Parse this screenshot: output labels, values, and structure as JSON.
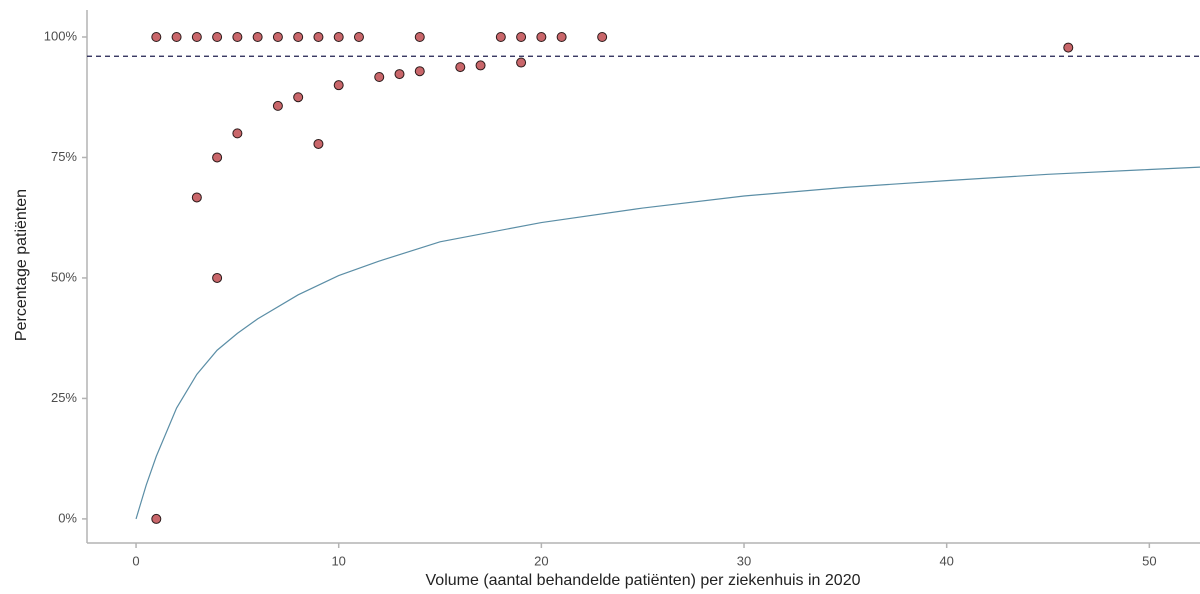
{
  "chart_data": {
    "type": "scatter",
    "xlabel": "Volume (aantal behandelde patiënten) per ziekenhuis in 2020",
    "ylabel": "Percentage patiënten",
    "xlim": [
      -2.42,
      52.5
    ],
    "ylim": [
      -5,
      105.6
    ],
    "xticks": [
      0,
      10,
      20,
      30,
      40,
      50
    ],
    "yticks": [
      {
        "value": 0,
        "label": "0%"
      },
      {
        "value": 25,
        "label": "25%"
      },
      {
        "value": 50,
        "label": "50%"
      },
      {
        "value": 75,
        "label": "75%"
      },
      {
        "value": 100,
        "label": "100%"
      }
    ],
    "grid": false,
    "series": [
      {
        "type": "scatter",
        "color": "#c9666a",
        "x": [
          1,
          2,
          3,
          4,
          5,
          6,
          7,
          8,
          9,
          10,
          11,
          14,
          18,
          19,
          20,
          21,
          23,
          1,
          3,
          4,
          4,
          5,
          7,
          8,
          9,
          10,
          12,
          13,
          14,
          16,
          17,
          19,
          46
        ],
        "values": [
          100,
          100,
          100,
          100,
          100,
          100,
          100,
          100,
          100,
          100,
          100,
          100,
          100,
          100,
          100,
          100,
          100,
          0,
          66.7,
          75,
          50,
          80,
          85.7,
          87.5,
          77.8,
          90,
          91.7,
          92.3,
          92.9,
          93.75,
          94.1,
          94.7,
          97.8
        ]
      },
      {
        "type": "line",
        "color": "#5b8ea6",
        "x": [
          0,
          0.5,
          1,
          2,
          3,
          4,
          5,
          6,
          8,
          10,
          12,
          15,
          20,
          25,
          30,
          35,
          40,
          45,
          50,
          52.5
        ],
        "values": [
          0,
          7,
          13,
          23,
          30,
          35,
          38.5,
          41.5,
          46.5,
          50.5,
          53.5,
          57.5,
          61.5,
          64.5,
          67,
          68.8,
          70.2,
          71.5,
          72.5,
          73
        ]
      }
    ],
    "hline": {
      "value": 96,
      "color": "#1f1f4f",
      "style": "dashed"
    }
  }
}
